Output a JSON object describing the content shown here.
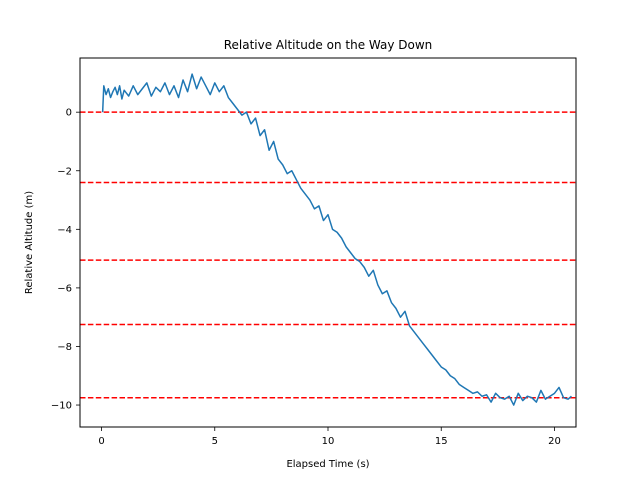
{
  "chart_data": {
    "type": "line",
    "title": "Relative Altitude on the Way Down",
    "xlabel": "Elapsed Time (s)",
    "ylabel": "Relative Altitude (m)",
    "xlim": [
      -0.95,
      20.95
    ],
    "ylim": [
      -10.75,
      1.85
    ],
    "x_ticks": [
      0,
      5,
      10,
      15,
      20
    ],
    "y_ticks": [
      0,
      -2,
      -4,
      -6,
      -8,
      -10
    ],
    "grid": false,
    "series": [
      {
        "color": "#1f77b4",
        "x": [
          0.05,
          0.1,
          0.2,
          0.3,
          0.4,
          0.5,
          0.6,
          0.7,
          0.8,
          0.9,
          1.0,
          1.2,
          1.4,
          1.6,
          1.8,
          2.0,
          2.2,
          2.4,
          2.6,
          2.8,
          3.0,
          3.2,
          3.4,
          3.6,
          3.8,
          4.0,
          4.2,
          4.4,
          4.6,
          4.8,
          5.0,
          5.2,
          5.4,
          5.6,
          5.8,
          6.0,
          6.2,
          6.4,
          6.6,
          6.8,
          7.0,
          7.2,
          7.4,
          7.6,
          7.8,
          8.0,
          8.2,
          8.4,
          8.6,
          8.8,
          9.0,
          9.2,
          9.4,
          9.6,
          9.8,
          10.0,
          10.2,
          10.4,
          10.6,
          10.8,
          11.0,
          11.2,
          11.4,
          11.6,
          11.8,
          12.0,
          12.2,
          12.4,
          12.6,
          12.8,
          13.0,
          13.2,
          13.4,
          13.6,
          13.8,
          14.0,
          14.2,
          14.4,
          14.6,
          14.8,
          15.0,
          15.2,
          15.4,
          15.6,
          15.8,
          16.0,
          16.2,
          16.4,
          16.6,
          16.8,
          17.0,
          17.2,
          17.4,
          17.6,
          17.8,
          18.0,
          18.2,
          18.4,
          18.6,
          18.8,
          19.0,
          19.2,
          19.4,
          19.6,
          19.8,
          20.0,
          20.2,
          20.4,
          20.6,
          20.75
        ],
        "y": [
          0.0,
          0.9,
          0.6,
          0.8,
          0.5,
          0.7,
          0.85,
          0.6,
          0.9,
          0.45,
          0.75,
          0.55,
          0.9,
          0.6,
          0.8,
          1.0,
          0.55,
          0.85,
          0.7,
          1.0,
          0.6,
          0.9,
          0.5,
          1.1,
          0.7,
          1.3,
          0.8,
          1.2,
          0.9,
          0.6,
          1.0,
          0.7,
          0.9,
          0.5,
          0.3,
          0.1,
          -0.1,
          0.0,
          -0.4,
          -0.2,
          -0.8,
          -0.6,
          -1.3,
          -1.0,
          -1.6,
          -1.8,
          -2.1,
          -2.0,
          -2.3,
          -2.6,
          -2.8,
          -3.0,
          -3.3,
          -3.2,
          -3.7,
          -3.5,
          -4.0,
          -4.1,
          -4.3,
          -4.6,
          -4.8,
          -5.0,
          -5.1,
          -5.3,
          -5.6,
          -5.4,
          -5.9,
          -6.2,
          -6.1,
          -6.5,
          -6.7,
          -7.0,
          -6.8,
          -7.3,
          -7.5,
          -7.7,
          -7.9,
          -8.1,
          -8.3,
          -8.5,
          -8.7,
          -8.8,
          -9.0,
          -9.1,
          -9.3,
          -9.4,
          -9.5,
          -9.6,
          -9.55,
          -9.7,
          -9.65,
          -9.9,
          -9.6,
          -9.75,
          -9.8,
          -9.7,
          -10.0,
          -9.6,
          -9.85,
          -9.7,
          -9.75,
          -9.9,
          -9.5,
          -9.8,
          -9.7,
          -9.6,
          -9.4,
          -9.75,
          -9.8,
          -9.7
        ]
      }
    ],
    "reference_lines": {
      "orientation": "horizontal",
      "color": "#ff0000",
      "style": "dashed",
      "y": [
        0.0,
        -2.4,
        -5.05,
        -7.25,
        -9.75
      ]
    }
  }
}
